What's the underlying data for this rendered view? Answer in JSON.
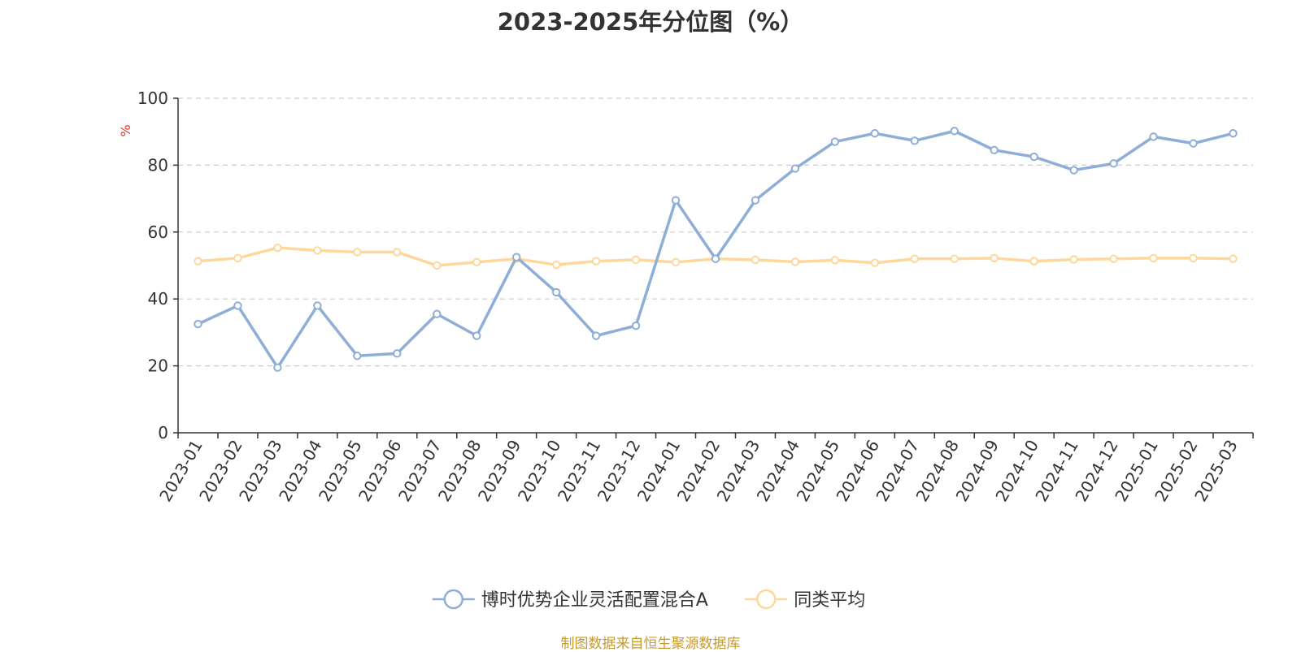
{
  "chart_data": {
    "type": "line",
    "title": "2023-2025年分位图（%）",
    "ylabel": "%",
    "xlabel": "",
    "ylim": [
      0,
      100
    ],
    "yticks": [
      0,
      20,
      40,
      60,
      80,
      100
    ],
    "grid": true,
    "legend_position": "bottom",
    "categories": [
      "2023-01",
      "2023-02",
      "2023-03",
      "2023-04",
      "2023-05",
      "2023-06",
      "2023-07",
      "2023-08",
      "2023-09",
      "2023-10",
      "2023-11",
      "2023-12",
      "2024-01",
      "2024-02",
      "2024-03",
      "2024-04",
      "2024-05",
      "2024-06",
      "2024-07",
      "2024-08",
      "2024-09",
      "2024-10",
      "2024-11",
      "2024-12",
      "2025-01",
      "2025-02",
      "2025-03"
    ],
    "series": [
      {
        "name": "博时优势企业灵活配置混合A",
        "color": "#8eaed8",
        "values": [
          32.5,
          38,
          19.5,
          38,
          23,
          23.7,
          35.5,
          29,
          52.5,
          42,
          29,
          32,
          69.5,
          52,
          69.5,
          79,
          87,
          89.5,
          87.3,
          90.2,
          84.5,
          82.5,
          78.5,
          80.5,
          88.5,
          86.5,
          89.5
        ]
      },
      {
        "name": "同类平均",
        "color": "#fdd89a",
        "values": [
          51.3,
          52.2,
          55.3,
          54.5,
          54,
          54,
          50,
          51,
          52,
          50.2,
          51.3,
          51.7,
          51,
          52,
          51.7,
          51.1,
          51.6,
          50.8,
          52,
          52,
          52.2,
          51.3,
          51.8,
          52,
          52.2,
          52.2,
          52
        ]
      }
    ]
  },
  "source_note": "制图数据来自恒生聚源数据库"
}
